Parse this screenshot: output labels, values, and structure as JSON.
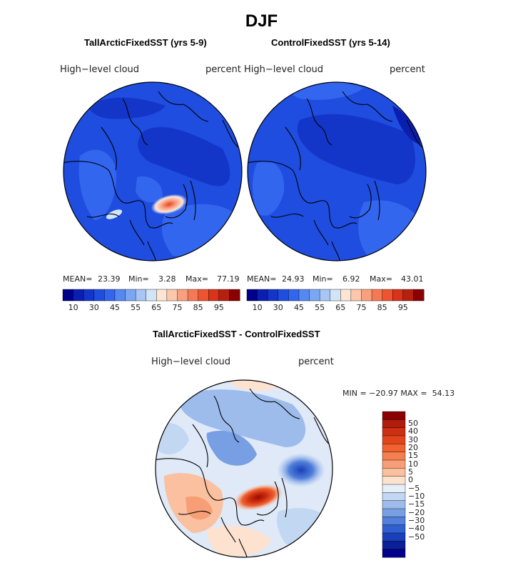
{
  "figure_title": "DJF",
  "chart_data": [
    {
      "type": "heatmap",
      "projection": "north-polar-stereographic",
      "title": "TallArcticFixedSST (yrs 5-9)",
      "variable": "High−level cloud",
      "units": "percent",
      "stats": {
        "mean_label": "MEAN=",
        "mean": "23.39",
        "min_label": "Min=",
        "min": "3.28",
        "max_label": "Max=",
        "max": "77.19"
      },
      "colorbar": {
        "levels": [
          10,
          20,
          25,
          30,
          35,
          40,
          45,
          50,
          55,
          60,
          65,
          70,
          75,
          80,
          85,
          90,
          95
        ],
        "tick_labels": [
          "10",
          "30",
          "45",
          "55",
          "65",
          "75",
          "85",
          "95"
        ],
        "colors": [
          "#00008b",
          "#0a1fb0",
          "#1436c8",
          "#1e4de0",
          "#3366ee",
          "#5588f0",
          "#7aa6f2",
          "#a7c6f5",
          "#d2e4f8",
          "#fde5d6",
          "#fbc7ad",
          "#f8a07f",
          "#f47a55",
          "#ef5430",
          "#d9331a",
          "#b5200f",
          "#8b0000"
        ]
      }
    },
    {
      "type": "heatmap",
      "projection": "north-polar-stereographic",
      "title": "ControlFixedSST (yrs 5-14)",
      "variable": "High−level cloud",
      "units": "percent",
      "stats": {
        "mean_label": "MEAN=",
        "mean": "24.93",
        "min_label": "Min=",
        "min": "6.92",
        "max_label": "Max=",
        "max": "43.01"
      },
      "colorbar": {
        "levels": [
          10,
          20,
          25,
          30,
          35,
          40,
          45,
          50,
          55,
          60,
          65,
          70,
          75,
          80,
          85,
          90,
          95
        ],
        "tick_labels": [
          "10",
          "30",
          "45",
          "55",
          "65",
          "75",
          "85",
          "95"
        ],
        "colors": [
          "#00008b",
          "#0a1fb0",
          "#1436c8",
          "#1e4de0",
          "#3366ee",
          "#5588f0",
          "#7aa6f2",
          "#a7c6f5",
          "#d2e4f8",
          "#fde5d6",
          "#fbc7ad",
          "#f8a07f",
          "#f47a55",
          "#ef5430",
          "#d9331a",
          "#b5200f",
          "#8b0000"
        ]
      }
    },
    {
      "type": "heatmap",
      "projection": "north-polar-stereographic",
      "title": "TallArcticFixedSST - ControlFixedSST",
      "variable": "High−level cloud",
      "units": "percent",
      "stats_text": "MIN = −20.97 MAX =  54.13",
      "colorbar": {
        "orientation": "vertical",
        "tick_labels": [
          "50",
          "40",
          "30",
          "20",
          "15",
          "10",
          "5",
          "0",
          "−5",
          "−10",
          "−15",
          "−20",
          "−30",
          "−40",
          "−50"
        ],
        "colors": [
          "#8b0000",
          "#b01d0a",
          "#cc2f12",
          "#e4441c",
          "#f0622f",
          "#f47f50",
          "#f79e76",
          "#fac09f",
          "#fde2d0",
          "#e6eef9",
          "#c2d7f2",
          "#9dbcec",
          "#789fe4",
          "#5280da",
          "#2f5fd0",
          "#1a3fb8",
          "#0a1f98",
          "#00008b"
        ]
      }
    }
  ]
}
